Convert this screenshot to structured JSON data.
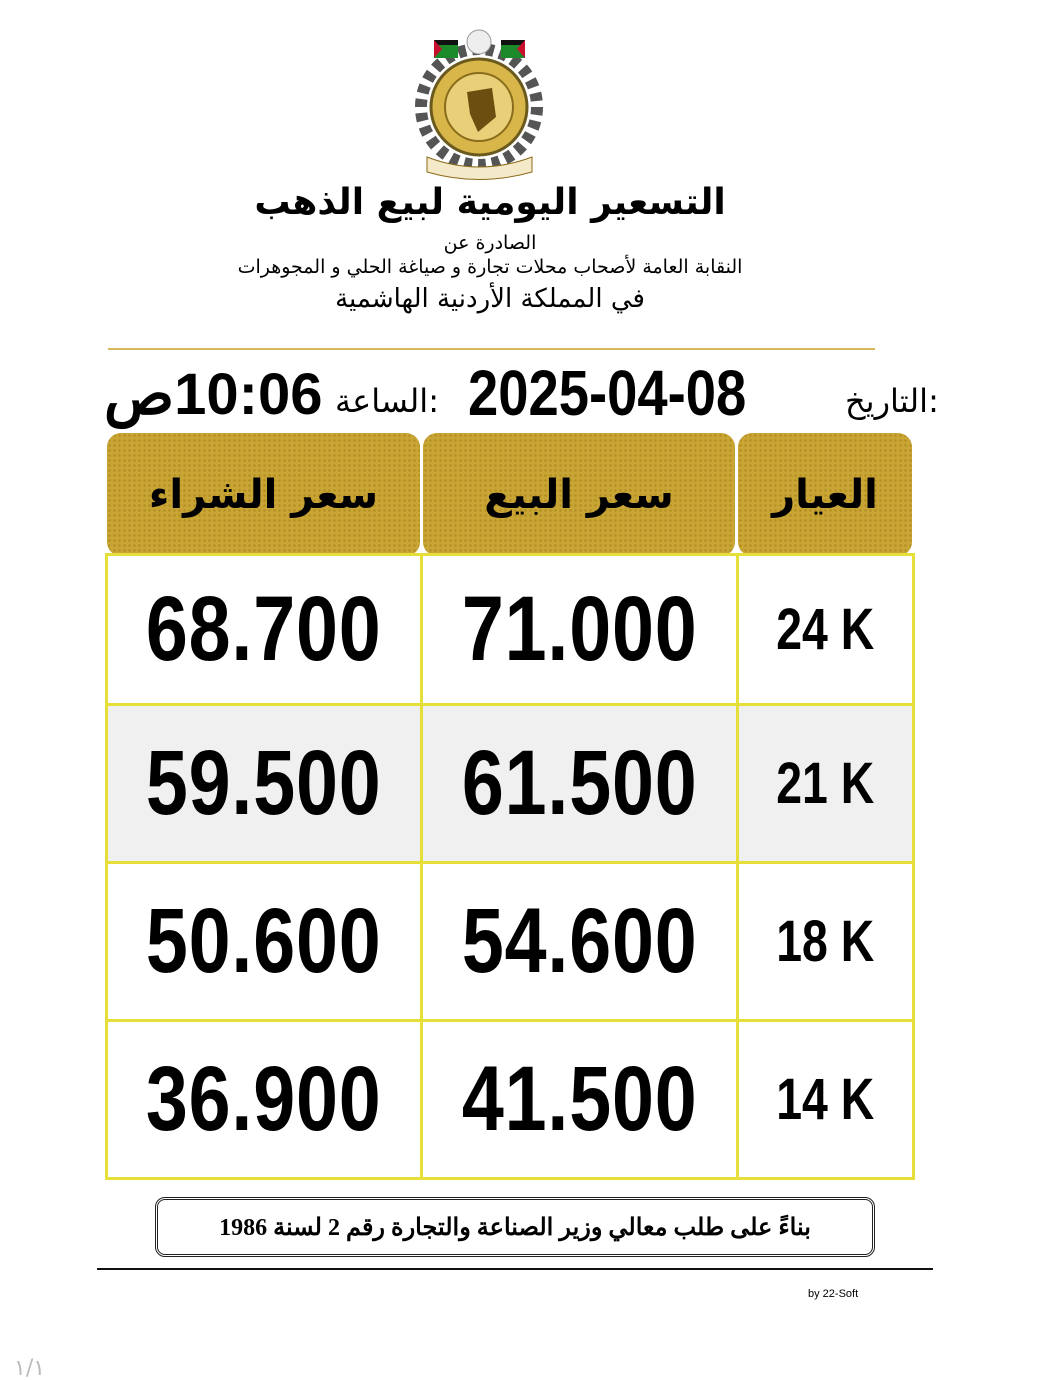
{
  "header": {
    "title": "التسعير اليومية لبيع الذهب",
    "issued_by": "الصادرة عن",
    "union": "النقابة العامة لأصحاب محلات تجارة و صياغة الحلي و المجوهرات",
    "kingdom": "في المملكة الأردنية الهاشمية"
  },
  "datetime": {
    "date_label": "التاريخ:",
    "date": "2025-04-08",
    "time_label": "الساعة:",
    "time": "10:06ص"
  },
  "table": {
    "columns": [
      "العيار",
      "سعر البيع",
      "سعر الشراء"
    ],
    "rows": [
      {
        "karat": "24 K",
        "sell": "71.000",
        "buy": "68.700"
      },
      {
        "karat": "21 K",
        "sell": "61.500",
        "buy": "59.500"
      },
      {
        "karat": "18 K",
        "sell": "54.600",
        "buy": "50.600"
      },
      {
        "karat": "14 K",
        "sell": "41.500",
        "buy": "36.900"
      }
    ]
  },
  "footer": {
    "note": "بناءً على طلب معالي وزير الصناعة والتجارة رقم 2 لسنة 1986",
    "credit": "by 22-Soft",
    "page_number": "١/١"
  },
  "colors": {
    "gold": "#c9a535",
    "border": "#e6df3a",
    "highlight_row": "#f0f0f0"
  }
}
